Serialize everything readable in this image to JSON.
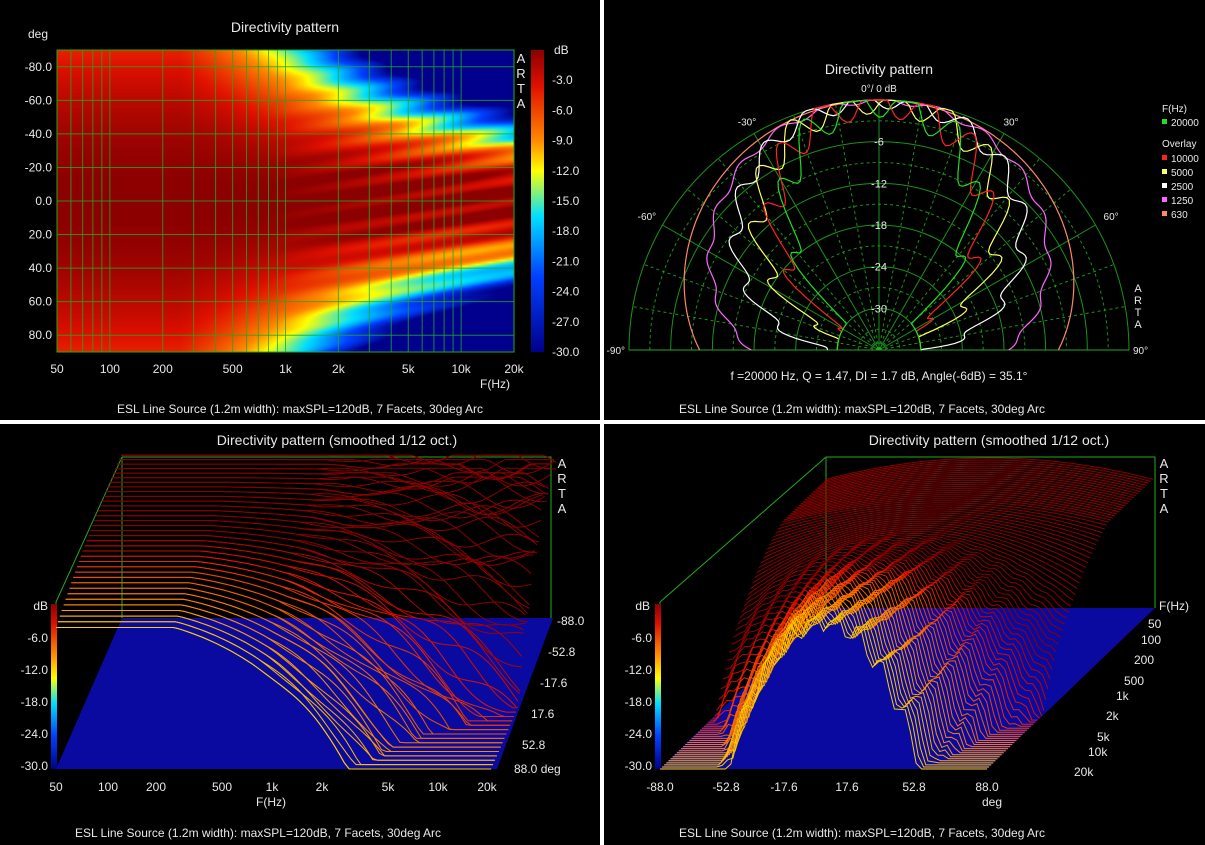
{
  "colors": {
    "grid": "#1faa1f",
    "text": "#e8e8e8",
    "background": "#000000"
  },
  "caption": "ESL Line Source (1.2m width): maxSPL=120dB, 7 Facets, 30deg Arc",
  "arta_label": [
    "A",
    "R",
    "T",
    "A"
  ],
  "chart_data": [
    {
      "type": "heatmap",
      "title": "Directivity pattern",
      "xlabel": "F(Hz)",
      "ylabel": "deg",
      "x_scale": "log",
      "xlim": [
        50,
        20000
      ],
      "x_ticks": [
        "50",
        "100",
        "200",
        "500",
        "1k",
        "2k",
        "5k",
        "10k",
        "20k"
      ],
      "x_tick_values": [
        50,
        100,
        200,
        500,
        1000,
        2000,
        5000,
        10000,
        20000
      ],
      "y_ticks": [
        "-80.0",
        "-60.0",
        "-40.0",
        "-20.0",
        "0.0",
        "20.0",
        "40.0",
        "60.0",
        "80.0"
      ],
      "y_tick_values": [
        -80,
        -60,
        -40,
        -20,
        0,
        20,
        40,
        60,
        80
      ],
      "ylim": [
        -90,
        90
      ],
      "colorbar": {
        "label": "dB",
        "ticks": [
          "-3.0",
          "-6.0",
          "-9.0",
          "-12.0",
          "-15.0",
          "-18.0",
          "-21.0",
          "-24.0",
          "-27.0",
          "-30.0"
        ],
        "range": [
          0,
          -30
        ]
      },
      "caption": "ESL Line Source (1.2m width): maxSPL=120dB, 7 Facets, 30deg Arc"
    },
    {
      "type": "polar",
      "title": "Directivity pattern",
      "angle_labels": [
        "0°/ 0 dB",
        "-30°",
        "30°",
        "-60°",
        "60°",
        "-90°",
        "90°"
      ],
      "radial_labels": [
        "-6",
        "-12",
        "-18",
        "-24",
        "-30"
      ],
      "legend_title": "F(Hz)",
      "legend_main": {
        "name": "20000",
        "color": "#22dd22"
      },
      "legend_overlay_title": "Overlay",
      "legend_overlay": [
        {
          "name": "10000",
          "color": "#ff2222"
        },
        {
          "name": "5000",
          "color": "#ffff66"
        },
        {
          "name": "2500",
          "color": "#ffffff"
        },
        {
          "name": "1250",
          "color": "#ff66ff"
        },
        {
          "name": "630",
          "color": "#ff8866"
        }
      ],
      "stats": "f =20000 Hz,  Q =  1.47,  DI =   1.7 dB,  Angle(-6dB) =  35.1°",
      "caption": "ESL Line Source (1.2m width): maxSPL=120dB, 7 Facets, 30deg Arc"
    },
    {
      "type": "waterfall",
      "title": "Directivity pattern (smoothed 1/12 oct.)",
      "xlabel": "F(Hz)",
      "zlabel": "dB",
      "x_ticks": [
        "50",
        "100",
        "200",
        "500",
        "1k",
        "2k",
        "5k",
        "10k",
        "20k"
      ],
      "depth_ticks": [
        "-88.0",
        "-52.8",
        "-17.6",
        "17.6",
        "52.8",
        "88.0 deg"
      ],
      "z_ticks": [
        "-6.0",
        "-12.0",
        "-18.0",
        "-24.0",
        "-30.0"
      ],
      "caption": "ESL Line Source (1.2m width): maxSPL=120dB, 7 Facets, 30deg Arc"
    },
    {
      "type": "waterfall",
      "title": "Directivity pattern (smoothed 1/12 oct.)",
      "xlabel": "deg",
      "ylabel": "F(Hz)",
      "zlabel": "dB",
      "x_ticks": [
        "-88.0",
        "-52.8",
        "-17.6",
        "17.6",
        "52.8",
        "88.0"
      ],
      "depth_ticks": [
        "50",
        "100",
        "200",
        "500",
        "1k",
        "2k",
        "5k",
        "10k",
        "20k"
      ],
      "z_ticks": [
        "-6.0",
        "-12.0",
        "-18.0",
        "-24.0",
        "-30.0"
      ],
      "caption": "ESL Line Source (1.2m width): maxSPL=120dB, 7 Facets, 30deg Arc"
    }
  ]
}
